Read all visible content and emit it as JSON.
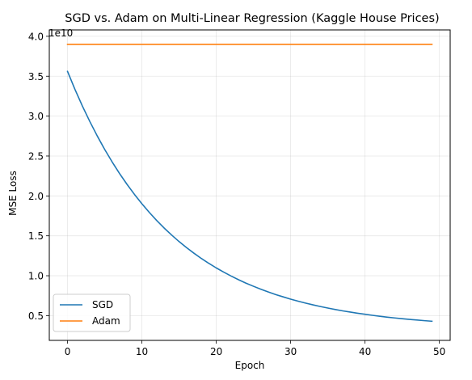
{
  "chart_data": {
    "type": "line",
    "title": "SGD vs. Adam on Multi-Linear Regression (Kaggle House Prices)",
    "xlabel": "Epoch",
    "ylabel": "MSE Loss",
    "y_offset_label": "1e10",
    "y_scale_factor": 10000000000,
    "xlim": [
      -2.45,
      51.45
    ],
    "ylim": [
      0.19,
      4.08
    ],
    "x_ticks": [
      0,
      10,
      20,
      30,
      40,
      50
    ],
    "y_ticks": [
      0.5,
      1.0,
      1.5,
      2.0,
      2.5,
      3.0,
      3.5,
      4.0
    ],
    "y_tick_labels": [
      "0.5",
      "1.0",
      "1.5",
      "2.0",
      "2.5",
      "3.0",
      "3.5",
      "4.0"
    ],
    "grid": true,
    "legend_position": "lower-left",
    "x": [
      0,
      1,
      2,
      3,
      4,
      5,
      6,
      7,
      8,
      9,
      10,
      11,
      12,
      13,
      14,
      15,
      16,
      17,
      18,
      19,
      20,
      21,
      22,
      23,
      24,
      25,
      26,
      27,
      28,
      29,
      30,
      31,
      32,
      33,
      34,
      35,
      36,
      37,
      38,
      39,
      40,
      41,
      42,
      43,
      44,
      45,
      46,
      47,
      48,
      49
    ],
    "series": [
      {
        "name": "SGD",
        "color": "#1f77b4",
        "values": [
          3.56,
          3.335,
          3.126,
          2.932,
          2.751,
          2.582,
          2.426,
          2.28,
          2.145,
          2.019,
          1.902,
          1.793,
          1.691,
          1.597,
          1.51,
          1.428,
          1.352,
          1.282,
          1.216,
          1.155,
          1.098,
          1.045,
          0.996,
          0.95,
          0.907,
          0.868,
          0.831,
          0.796,
          0.764,
          0.735,
          0.707,
          0.681,
          0.657,
          0.635,
          0.614,
          0.595,
          0.577,
          0.56,
          0.545,
          0.53,
          0.517,
          0.504,
          0.492,
          0.481,
          0.471,
          0.462,
          0.453,
          0.445,
          0.437,
          0.43
        ]
      },
      {
        "name": "Adam",
        "color": "#ff7f0e",
        "values": [
          3.9,
          3.9,
          3.9,
          3.9,
          3.9,
          3.9,
          3.9,
          3.9,
          3.9,
          3.9,
          3.9,
          3.9,
          3.9,
          3.9,
          3.9,
          3.9,
          3.9,
          3.9,
          3.9,
          3.9,
          3.9,
          3.9,
          3.9,
          3.9,
          3.9,
          3.9,
          3.9,
          3.9,
          3.9,
          3.9,
          3.9,
          3.9,
          3.9,
          3.9,
          3.9,
          3.9,
          3.9,
          3.9,
          3.9,
          3.9,
          3.9,
          3.9,
          3.9,
          3.9,
          3.9,
          3.9,
          3.9,
          3.9,
          3.9,
          3.9
        ]
      }
    ]
  }
}
